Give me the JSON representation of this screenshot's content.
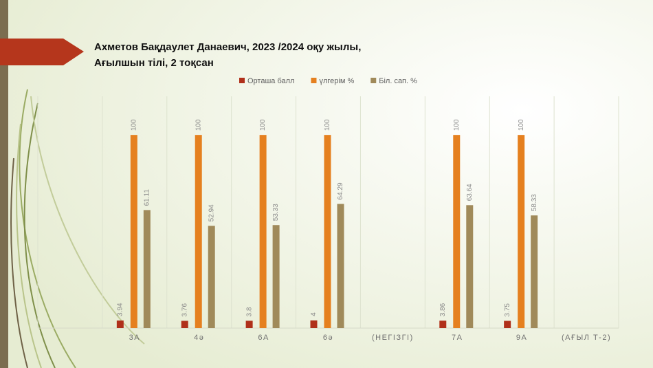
{
  "chart_data": {
    "type": "bar",
    "title": [
      "Ахметов Бақдаулет Данаевич, 2023 /2024 оқу жылы,",
      "Ағылшын тілі, 2 тоқсан"
    ],
    "categories": [
      null,
      "3А",
      "4ә",
      "6А",
      "6ә",
      "(НЕГІЗГІ)",
      "7А",
      "9А",
      "(АҒЫЛ Т-2)"
    ],
    "series": [
      {
        "name": "Орташа балл",
        "color": "#b0301a",
        "values": [
          null,
          3.94,
          3.76,
          3.8,
          4,
          null,
          3.86,
          3.75,
          null
        ]
      },
      {
        "name": "үлгерім %",
        "color": "#e5801f",
        "values": [
          null,
          100,
          100,
          100,
          100,
          null,
          100,
          100,
          null
        ]
      },
      {
        "name": "Біл. сап. %",
        "color": "#a08a5a",
        "values": [
          null,
          61.11,
          52.94,
          53.33,
          64.29,
          null,
          63.64,
          58.33,
          null
        ]
      }
    ],
    "ylim": [
      0,
      120
    ],
    "legend": "top"
  }
}
